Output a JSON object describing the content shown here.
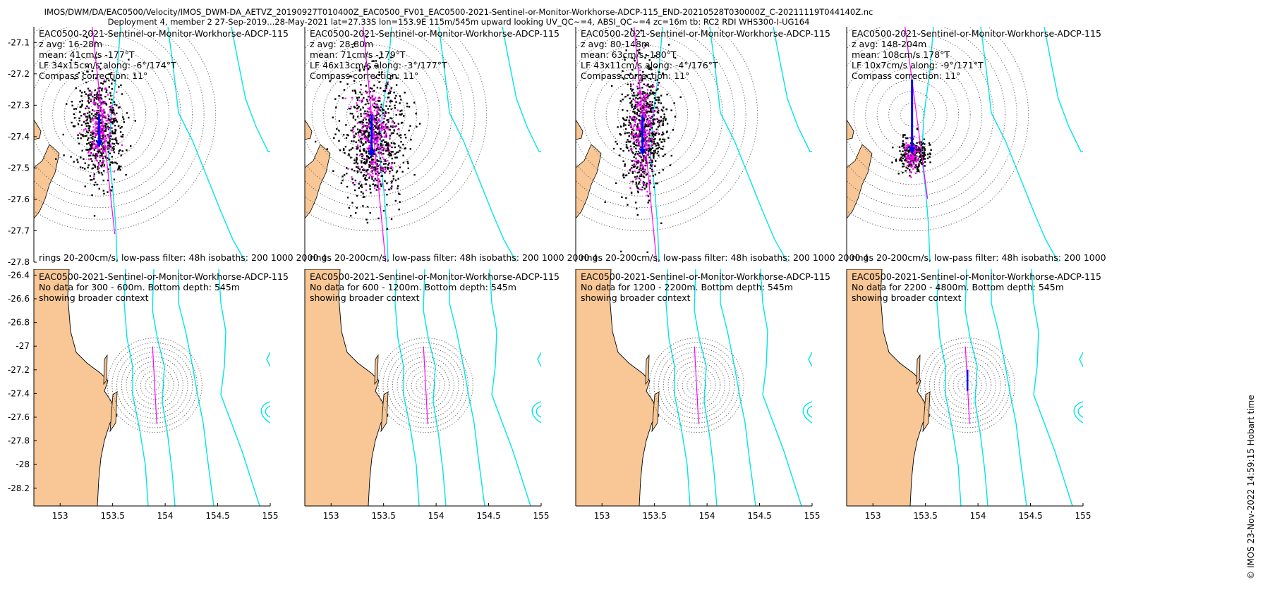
{
  "header": {
    "title_line1": "IMOS/DWM/DA/EAC0500/Velocity/IMOS_DWM-DA_AETVZ_20190927T010400Z_EAC0500_FV01_EAC0500-2021-Sentinel-or-Monitor-Workhorse-ADCP-115_END-20210528T030000Z_C-20211119T044140Z.nc",
    "title_line2": "Deployment 4, member 2 27-Sep-2019...28-May-2021 lat=27.33S lon=153.9E 115m/545m upward looking UV_QC~=4, ABSI_QC~=4 zc=16m tb: RC2 RDI WHS300-I-UG164"
  },
  "credit": "© IMOS 23-Nov-2022 14:59:15 Hobart time",
  "colors": {
    "land": "#f8c795",
    "coast": "#000000",
    "isobath": "#00e5e5",
    "scatter_all": "#000000",
    "scatter_lowpass": "#ff00ff",
    "mean_arrow": "#0000ff",
    "axis_line": "#ff00ff",
    "rings": "#555555"
  },
  "chart_data": [
    {
      "type": "scatter",
      "panel": "top-1",
      "texts": [
        "EAC0500-2021-Sentinel-or-Monitor-Workhorse-ADCP-115",
        "z avg: 16-28m",
        "mean: 41cm/s -177°T",
        "LF 34x15cm/s along: -6°/174°T",
        "Compass correction: 11°"
      ],
      "footer": "rings 20-200cm/s, low-pass filter: 48h isobaths: 200 1000 2000 4",
      "xlim": [
        153.77,
        154.24
      ],
      "ylim": [
        -27.8,
        -27.05
      ],
      "y_ticks": [
        -27.1,
        -27.2,
        -27.3,
        -27.4,
        -27.5,
        -27.6,
        -27.7,
        -27.8
      ],
      "center": [
        153.9,
        -27.33
      ],
      "rings_cm_s": [
        20,
        40,
        60,
        80,
        100,
        120,
        140,
        160,
        180,
        200
      ],
      "mean_speed_cm_s": 41,
      "mean_dir_deg": -177,
      "lf_major_cm_s": 34,
      "lf_minor_cm_s": 15,
      "along_dir_deg": 174
    },
    {
      "type": "scatter",
      "panel": "top-2",
      "texts": [
        "EAC0500-2021-Sentinel-or-Monitor-Workhorse-ADCP-115",
        "z avg: 28-80m",
        "mean: 71cm/s -179°T",
        "LF 46x13cm/s along: -3°/177°T",
        "Compass correction: 11°"
      ],
      "footer": "rings 20-200cm/s, low-pass filter: 48h isobaths: 200 1000 2000 4",
      "xlim": [
        153.77,
        154.24
      ],
      "ylim": [
        -27.8,
        -27.05
      ],
      "mean_speed_cm_s": 71,
      "mean_dir_deg": -179,
      "lf_major_cm_s": 46,
      "lf_minor_cm_s": 13,
      "along_dir_deg": 177
    },
    {
      "type": "scatter",
      "panel": "top-3",
      "texts": [
        "EAC0500-2021-Sentinel-or-Monitor-Workhorse-ADCP-115",
        "z avg: 80-148m",
        "mean: 63cm/s -180°T",
        "LF 43x11cm/s along: -4°/176°T",
        "Compass correction: 11°"
      ],
      "footer": "rings 20-200cm/s, low-pass filter: 48h isobaths: 200 1000 2000 4",
      "xlim": [
        153.77,
        154.24
      ],
      "ylim": [
        -27.8,
        -27.05
      ],
      "mean_speed_cm_s": 63,
      "mean_dir_deg": -180,
      "lf_major_cm_s": 43,
      "lf_minor_cm_s": 11,
      "along_dir_deg": 176
    },
    {
      "type": "scatter",
      "panel": "top-4",
      "texts": [
        "EAC0500-2021-Sentinel-or-Monitor-Workhorse-ADCP-115",
        "z avg: 148-204m",
        "mean: 108cm/s 178°T",
        "LF 10x7cm/s along: -9°/171°T",
        "Compass correction: 11°"
      ],
      "footer": "rings 20-200cm/s, low-pass filter: 48h isobaths: 200 1000",
      "xlim": [
        153.77,
        154.24
      ],
      "ylim": [
        -27.8,
        -27.05
      ],
      "mean_speed_cm_s": 108,
      "mean_dir_deg": 178,
      "lf_major_cm_s": 10,
      "lf_minor_cm_s": 7,
      "along_dir_deg": 171
    },
    {
      "type": "map",
      "panel": "bottom-1",
      "texts": [
        "EAC0500-2021-Sentinel-or-Monitor-Workhorse-ADCP-115",
        "No data for 300 - 600m. Bottom depth: 545m",
        "showing broader context"
      ],
      "xlim": [
        152.75,
        155.0
      ],
      "ylim": [
        -28.35,
        -26.35
      ],
      "x_ticks": [
        153,
        153.5,
        154,
        154.5,
        155
      ],
      "y_ticks": [
        -26.4,
        -26.6,
        -26.8,
        -27,
        -27.2,
        -27.4,
        -27.6,
        -27.8,
        -28,
        -28.2
      ]
    },
    {
      "type": "map",
      "panel": "bottom-2",
      "texts": [
        "EAC0500-2021-Sentinel-or-Monitor-Workhorse-ADCP-115",
        "No data for 600 - 1200m. Bottom depth: 545m",
        "showing broader context"
      ],
      "xlim": [
        152.75,
        155.0
      ],
      "ylim": [
        -28.35,
        -26.35
      ],
      "x_ticks": [
        153,
        153.5,
        154,
        154.5,
        155
      ]
    },
    {
      "type": "map",
      "panel": "bottom-3",
      "texts": [
        "EAC0500-2021-Sentinel-or-Monitor-Workhorse-ADCP-115",
        "No data for 1200 - 2200m. Bottom depth: 545m",
        "showing broader context"
      ],
      "xlim": [
        152.75,
        155.0
      ],
      "ylim": [
        -28.35,
        -26.35
      ],
      "x_ticks": [
        153,
        153.5,
        154,
        154.5,
        155
      ]
    },
    {
      "type": "map",
      "panel": "bottom-4",
      "texts": [
        "EAC0500-2021-Sentinel-or-Monitor-Workhorse-ADCP-115",
        "No data for 2200 - 4800m. Bottom depth: 545m",
        "showing broader context"
      ],
      "xlim": [
        152.75,
        155.0
      ],
      "ylim": [
        -28.35,
        -26.35
      ],
      "x_ticks": [
        153,
        153.5,
        154,
        154.5,
        155
      ]
    }
  ]
}
